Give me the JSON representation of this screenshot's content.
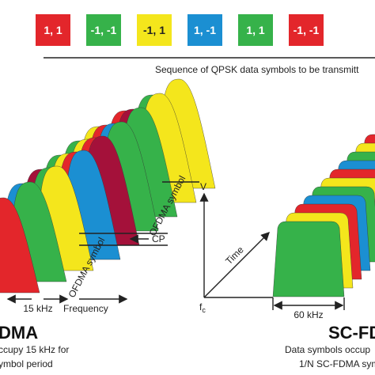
{
  "symbols": [
    {
      "label": "1, 1",
      "color": "#e3262b"
    },
    {
      "label": "-1, -1",
      "color": "#36b24a"
    },
    {
      "label": "-1, 1",
      "color": "#f4e61c"
    },
    {
      "label": "1, -1",
      "color": "#1b8fd2"
    },
    {
      "label": "1, 1",
      "color": "#36b24a"
    },
    {
      "label": "-1, -1",
      "color": "#e3262b"
    }
  ],
  "sequence_caption": "Sequence of QPSK data symbols to be transmitt",
  "ofdma": {
    "symbol_label_1": "OFDMA symbol",
    "symbol_label_2": "OFDMA symbol",
    "cp": "CP",
    "spacing": "15 kHz",
    "frequency": "Frequency",
    "title": "DMA",
    "desc_1": "ccupy 15 kHz for",
    "desc_2": "ymbol period"
  },
  "scfdma": {
    "v_axis": "V",
    "time_axis": "Time",
    "fc": "f",
    "fc_sub": "c",
    "bandwidth": "60 kHz",
    "title": "SC-FD",
    "desc_1": "Data symbols occup",
    "desc_2": "1/N SC-FDMA symbo"
  }
}
